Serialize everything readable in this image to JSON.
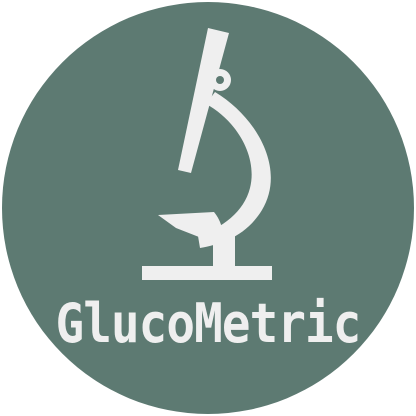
{
  "logo": {
    "brand_name": "GlucoMetric",
    "icon": "microscope-icon",
    "colors": {
      "background": "#5d7a72",
      "foreground": "#efefef"
    }
  }
}
